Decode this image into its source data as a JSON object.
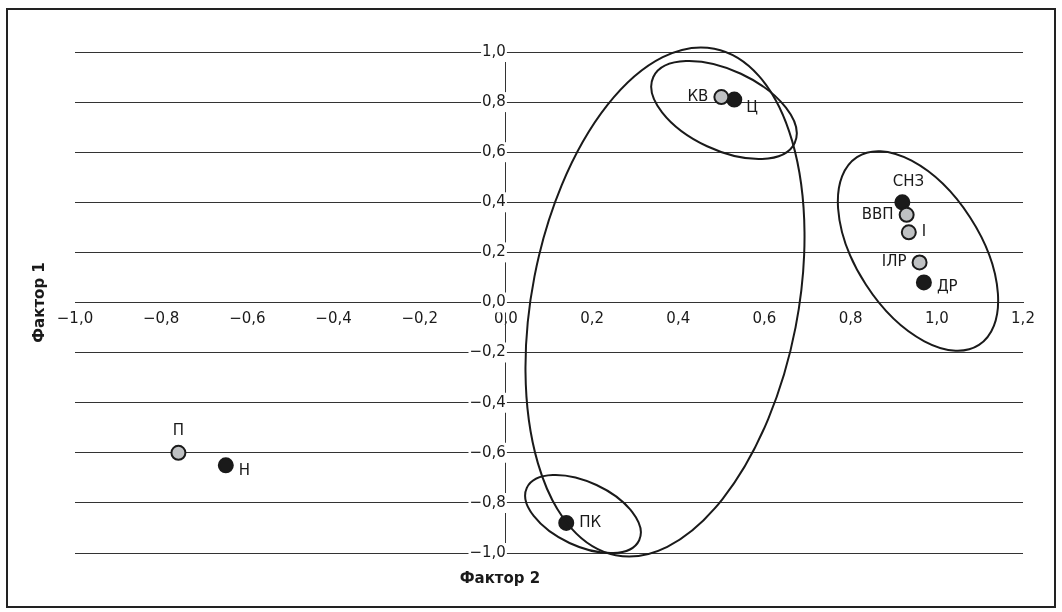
{
  "chart_data": {
    "type": "scatter",
    "xlabel": "Фактор 2",
    "ylabel": "Фактор 1",
    "xlim": [
      -1.0,
      1.2
    ],
    "ylim": [
      -1.0,
      1.0
    ],
    "xticks": [
      {
        "value": -1.0,
        "label": "−1,0"
      },
      {
        "value": -0.8,
        "label": "−0,8"
      },
      {
        "value": -0.6,
        "label": "−0,6"
      },
      {
        "value": -0.4,
        "label": "−0,4"
      },
      {
        "value": -0.2,
        "label": "−0,2"
      },
      {
        "value": 0,
        "label": "0,0"
      },
      {
        "value": 0.2,
        "label": "0,2"
      },
      {
        "value": 0.4,
        "label": "0,4"
      },
      {
        "value": 0.6,
        "label": "0,6"
      },
      {
        "value": 0.8,
        "label": "0,8"
      },
      {
        "value": 1.0,
        "label": "1,0"
      },
      {
        "value": 1.2,
        "label": "1,2"
      }
    ],
    "yticks": [
      {
        "value": -1.0,
        "label": "−1,0"
      },
      {
        "value": -0.8,
        "label": "−0,8"
      },
      {
        "value": -0.6,
        "label": "−0,6"
      },
      {
        "value": -0.4,
        "label": "−0,4"
      },
      {
        "value": -0.2,
        "label": "−0,2"
      },
      {
        "value": 0,
        "label": "0,0"
      },
      {
        "value": 0.2,
        "label": "0,2"
      },
      {
        "value": 0.4,
        "label": "0,4"
      },
      {
        "value": 0.6,
        "label": "0,6"
      },
      {
        "value": 0.8,
        "label": "0,8"
      },
      {
        "value": 1.0,
        "label": "1,0"
      }
    ],
    "grid": "y",
    "legend": false,
    "marker": "circle",
    "series": [
      {
        "color": "#bfc1c3",
        "x": [
          0.5,
          0.93,
          0.935,
          0.96,
          -0.76
        ],
        "values": [
          0.82,
          0.35,
          0.28,
          0.16,
          -0.6
        ]
      },
      {
        "color": "#1a1a1a",
        "x": [
          0.53,
          0.92,
          0.97,
          -0.65,
          0.14
        ],
        "values": [
          0.81,
          0.4,
          0.08,
          -0.65,
          -0.88
        ]
      }
    ],
    "annotations": [
      {
        "text": "КВ",
        "x": 0.5,
        "y": 0.82
      },
      {
        "text": "ВВП",
        "x": 0.93,
        "y": 0.35
      },
      {
        "text": "І",
        "x": 0.935,
        "y": 0.28
      },
      {
        "text": "ІЛР",
        "x": 0.96,
        "y": 0.16
      },
      {
        "text": "П",
        "x": -0.76,
        "y": -0.6
      },
      {
        "text": "Ц",
        "x": 0.53,
        "y": 0.81
      },
      {
        "text": "СНЗ",
        "x": 0.92,
        "y": 0.4
      },
      {
        "text": "ДР",
        "x": 0.97,
        "y": 0.08
      },
      {
        "text": "Н",
        "x": -0.65,
        "y": -0.65
      },
      {
        "text": "ПК",
        "x": 0.14,
        "y": -0.88
      }
    ]
  }
}
